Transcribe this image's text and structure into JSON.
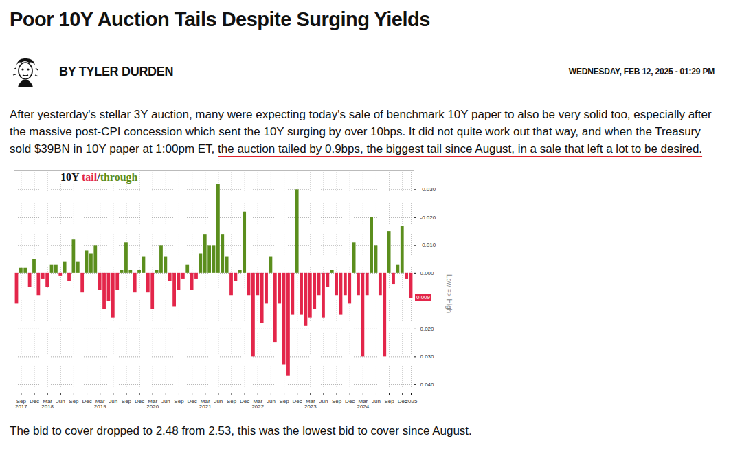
{
  "header": {
    "title": "Poor 10Y Auction Tails Despite Surging Yields",
    "author": "BY TYLER DURDEN",
    "date": "WEDNESDAY, FEB 12, 2025 - 01:29 PM"
  },
  "intro": [
    {
      "text": "After yesterday's stellar 3Y auction, many were expecting today's sale of benchmark 10Y paper to also be very solid too, especially after the massive post-CPI concession which sent the 10Y surging by over 10bps. It did not quite work out that way, and when the Treasury sold $39BN in 10Y paper at 1:00pm ET, "
    },
    {
      "text": "the auction tailed by 0.9bps, the biggest tail since August, in a sale that left a lot to be desired.",
      "underline": true
    }
  ],
  "chart_data": {
    "type": "bar",
    "title": "10Y tail/through",
    "categories": [
      null,
      "Sep\n2017",
      null,
      null,
      "Dec",
      null,
      null,
      "Mar\n2018",
      null,
      null,
      "Jun",
      null,
      null,
      "Sep",
      null,
      null,
      "Dec",
      null,
      null,
      "Mar\n2019",
      null,
      null,
      "Jun",
      null,
      null,
      "Sep",
      null,
      null,
      "Dec",
      null,
      null,
      "Mar\n2020",
      null,
      null,
      "Jun",
      null,
      null,
      "Sep",
      null,
      null,
      "Dec",
      null,
      null,
      "Mar\n2021",
      null,
      null,
      "Jun",
      null,
      null,
      "Sep",
      null,
      null,
      "Dec",
      null,
      null,
      "Mar\n2022",
      null,
      null,
      "Jun",
      null,
      null,
      "Sep",
      null,
      null,
      "Dec",
      null,
      null,
      "Mar\n2023",
      null,
      null,
      "Jun",
      null,
      null,
      "Sep",
      null,
      null,
      "Dec",
      null,
      null,
      "Mar\n2024",
      null,
      null,
      "Jun",
      null,
      null,
      "Sep",
      null,
      null,
      "Dec",
      null,
      "2025"
    ],
    "series": [
      {
        "name": "tail",
        "color": "#e3264a",
        "values": [
          0.011,
          null,
          null,
          0.005,
          null,
          0.008,
          0.002,
          0.005,
          null,
          null,
          0.001,
          null,
          0.003,
          null,
          null,
          0.007,
          null,
          null,
          null,
          0.006,
          0.013,
          0.01,
          0.016,
          0.006,
          null,
          null,
          null,
          0.007,
          null,
          null,
          0.007,
          0.013,
          null,
          null,
          null,
          0.003,
          0.012,
          0.006,
          0.002,
          null,
          0.006,
          0.002,
          null,
          null,
          null,
          null,
          null,
          null,
          null,
          0.008,
          0.003,
          null,
          null,
          0.008,
          0.03,
          0.008,
          0.018,
          0.011,
          null,
          0.025,
          0.011,
          0.033,
          0.037,
          0.015,
          null,
          0.015,
          0.019,
          0.016,
          0.013,
          0.008,
          0.016,
          0.005,
          null,
          0.008,
          0.015,
          0.008,
          0.011,
          null,
          0.008,
          0.03,
          0.008,
          null,
          null,
          0.008,
          0.03,
          null,
          0.004,
          null,
          null,
          0.002,
          0.009
        ]
      },
      {
        "name": "through",
        "color": "#5b8e1d",
        "values": [
          null,
          -0.002,
          -0.002,
          null,
          -0.005,
          null,
          null,
          null,
          -0.003,
          -0.003,
          null,
          -0.004,
          null,
          -0.012,
          -0.004,
          null,
          -0.008,
          -0.007,
          -0.01,
          null,
          null,
          null,
          null,
          null,
          -0.001,
          -0.011,
          -0.001,
          null,
          -0.001,
          -0.006,
          null,
          null,
          -0.001,
          -0.01,
          -0.006,
          null,
          null,
          null,
          null,
          -0.003,
          null,
          null,
          -0.007,
          -0.014,
          -0.01,
          -0.01,
          -0.032,
          -0.014,
          -0.006,
          null,
          null,
          -0.001,
          -0.022,
          null,
          null,
          null,
          null,
          null,
          -0.006,
          null,
          null,
          null,
          null,
          null,
          -0.03,
          null,
          null,
          null,
          null,
          null,
          null,
          null,
          -0.001,
          null,
          null,
          null,
          null,
          -0.011,
          null,
          null,
          null,
          -0.02,
          -0.01,
          null,
          null,
          -0.015,
          null,
          -0.003,
          -0.017,
          null,
          null
        ]
      }
    ],
    "ylim": [
      -0.037,
      0.043
    ],
    "yticks": [
      {
        "value": -0.03,
        "label": "-0.030"
      },
      {
        "value": -0.02,
        "label": "-0.020"
      },
      {
        "value": -0.01,
        "label": "-0.010"
      },
      {
        "value": 0,
        "label": "0.000"
      },
      {
        "value": 0.02,
        "label": "0.020"
      },
      {
        "value": 0.03,
        "label": "0.030"
      },
      {
        "value": 0.04,
        "label": "0.040"
      }
    ],
    "ylabel": "Low => High",
    "grid": true,
    "annotations": [
      {
        "text": "0.009",
        "y": 0.009
      }
    ]
  },
  "outro": "The bid to cover dropped to 2.48 from 2.53, this was the lowest bid to cover since August."
}
